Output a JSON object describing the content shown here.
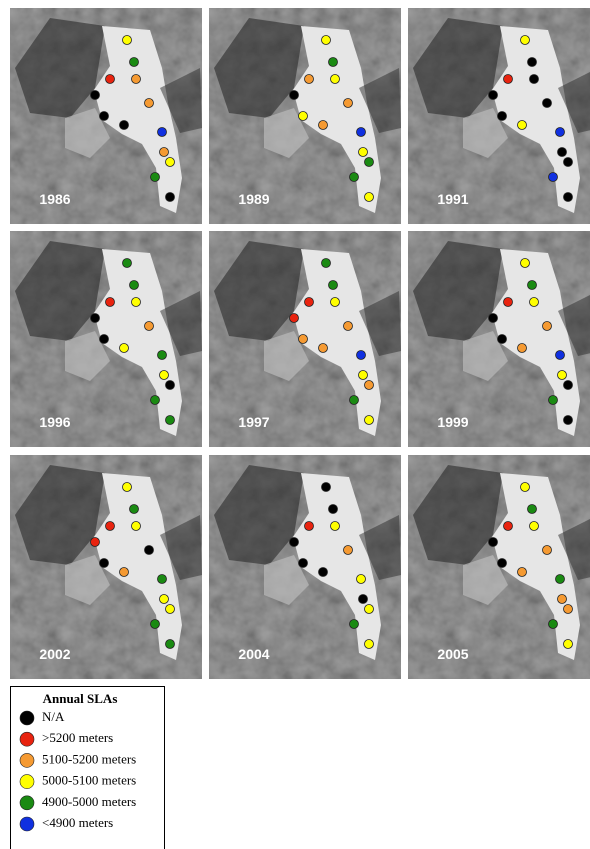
{
  "panels": [
    {
      "year": "1986",
      "sla": [
        "5000-5100 meters",
        "4900-5000 meters",
        ">5200 meters",
        "5100-5200 meters",
        "N/A",
        "5100-5200 meters",
        "N/A",
        "N/A",
        "<4900 meters",
        "5100-5200 meters",
        "5000-5100 meters",
        "4900-5000 meters",
        "N/A"
      ]
    },
    {
      "year": "1989",
      "sla": [
        "5000-5100 meters",
        "4900-5000 meters",
        "5100-5200 meters",
        "5000-5100 meters",
        "N/A",
        "5100-5200 meters",
        "5000-5100 meters",
        "5100-5200 meters",
        "<4900 meters",
        "5000-5100 meters",
        "4900-5000 meters",
        "4900-5000 meters",
        "5000-5100 meters"
      ]
    },
    {
      "year": "1991",
      "sla": [
        "5000-5100 meters",
        "N/A",
        ">5200 meters",
        "N/A",
        "N/A",
        "N/A",
        "N/A",
        "5000-5100 meters",
        "<4900 meters",
        "N/A",
        "N/A",
        "<4900 meters",
        "N/A"
      ]
    },
    {
      "year": "1996",
      "sla": [
        "4900-5000 meters",
        "4900-5000 meters",
        ">5200 meters",
        "5000-5100 meters",
        "N/A",
        "5100-5200 meters",
        "N/A",
        "5000-5100 meters",
        "4900-5000 meters",
        "5000-5100 meters",
        "N/A",
        "4900-5000 meters",
        "4900-5000 meters"
      ]
    },
    {
      "year": "1997",
      "sla": [
        "4900-5000 meters",
        "4900-5000 meters",
        ">5200 meters",
        "5000-5100 meters",
        ">5200 meters",
        "5100-5200 meters",
        "5100-5200 meters",
        "5100-5200 meters",
        "<4900 meters",
        "5000-5100 meters",
        "5100-5200 meters",
        "4900-5000 meters",
        "5000-5100 meters"
      ]
    },
    {
      "year": "1999",
      "sla": [
        "5000-5100 meters",
        "4900-5000 meters",
        ">5200 meters",
        "5000-5100 meters",
        "N/A",
        "5100-5200 meters",
        "N/A",
        "5100-5200 meters",
        "<4900 meters",
        "5000-5100 meters",
        "N/A",
        "4900-5000 meters",
        "N/A"
      ]
    },
    {
      "year": "2002",
      "sla": [
        "5000-5100 meters",
        "4900-5000 meters",
        ">5200 meters",
        "5000-5100 meters",
        ">5200 meters",
        "N/A",
        "N/A",
        "5100-5200 meters",
        "4900-5000 meters",
        "5000-5100 meters",
        "5000-5100 meters",
        "4900-5000 meters",
        "4900-5000 meters"
      ]
    },
    {
      "year": "2004",
      "sla": [
        "N/A",
        "N/A",
        ">5200 meters",
        "5000-5100 meters",
        "N/A",
        "5100-5200 meters",
        "N/A",
        "N/A",
        "5000-5100 meters",
        "N/A",
        "5000-5100 meters",
        "4900-5000 meters",
        "5000-5100 meters"
      ]
    },
    {
      "year": "2005",
      "sla": [
        "5000-5100 meters",
        "4900-5000 meters",
        ">5200 meters",
        "5000-5100 meters",
        "N/A",
        "5100-5200 meters",
        "N/A",
        "5100-5200 meters",
        "4900-5000 meters",
        "5100-5200 meters",
        "5100-5200 meters",
        "4900-5000 meters",
        "5000-5100 meters"
      ]
    }
  ],
  "legend": {
    "title": "Annual SLAs",
    "items": [
      {
        "label": "N/A",
        "color": "#000000"
      },
      {
        "label": ">5200 meters",
        "color": "#e8230f"
      },
      {
        "label": "5100-5200 meters",
        "color": "#f59a32"
      },
      {
        "label": "5000-5100 meters",
        "color": "#ffff00"
      },
      {
        "label": "4900-5000 meters",
        "color": "#1a8a12"
      },
      {
        "label": "<4900 meters",
        "color": "#1030e0"
      }
    ]
  }
}
